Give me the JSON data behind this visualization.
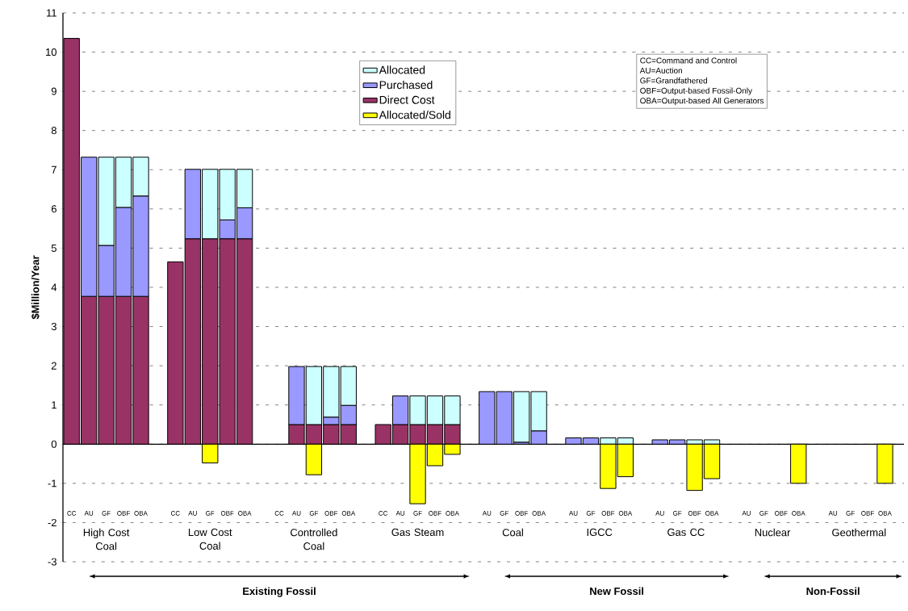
{
  "chart_data": {
    "type": "bar",
    "ylabel": "$Million/Year",
    "categories": [
      "CC",
      "AU",
      "GF",
      "OBF",
      "OBA",
      null,
      "CC",
      "AU",
      "GF",
      "OBF",
      "OBA",
      null,
      "CC",
      "AU",
      "GF",
      "OBF",
      "OBA",
      null,
      "CC",
      "AU",
      "GF",
      "OBF",
      "OBA",
      null,
      "AU",
      "GF",
      "OBF",
      "OBA",
      null,
      "AU",
      "GF",
      "OBF",
      "OBA",
      null,
      "AU",
      "GF",
      "OBF",
      "OBA",
      null,
      "AU",
      "GF",
      "OBF",
      "OBA",
      null,
      "AU",
      "GF",
      "OBF",
      "OBA"
    ],
    "series": [
      {
        "name": "Direct Cost",
        "color": "#993366",
        "values": [
          10.35,
          3.77,
          3.77,
          3.77,
          3.77,
          null,
          4.65,
          5.24,
          5.24,
          5.24,
          5.24,
          null,
          null,
          0.5,
          0.5,
          0.5,
          0.5,
          null,
          0.5,
          0.5,
          0.5,
          0.5,
          0.5,
          null,
          null,
          null,
          null,
          null,
          null,
          null,
          null,
          null,
          null,
          null,
          null,
          null,
          null,
          null,
          null,
          null,
          null,
          null,
          null,
          null,
          null,
          null,
          null,
          null
        ]
      },
      {
        "name": "Purchased",
        "color": "#9999ff",
        "values": [
          null,
          3.55,
          1.3,
          2.27,
          2.56,
          null,
          null,
          1.77,
          null,
          0.48,
          0.79,
          null,
          null,
          1.48,
          null,
          0.19,
          0.49,
          null,
          null,
          0.73,
          null,
          null,
          null,
          null,
          1.34,
          1.34,
          0.05,
          0.34,
          null,
          0.16,
          0.16,
          null,
          null,
          null,
          0.11,
          0.11,
          null,
          null,
          null,
          null,
          null,
          null,
          null,
          null,
          null,
          null,
          null,
          null
        ]
      },
      {
        "name": "Allocated",
        "color": "#ccffff",
        "values": [
          null,
          null,
          2.25,
          1.28,
          0.99,
          null,
          null,
          null,
          1.77,
          1.29,
          0.98,
          null,
          null,
          null,
          1.48,
          1.29,
          0.99,
          null,
          null,
          null,
          0.73,
          0.73,
          0.73,
          null,
          null,
          null,
          1.29,
          1.0,
          null,
          null,
          null,
          0.16,
          0.16,
          null,
          null,
          null,
          0.11,
          0.11,
          null,
          null,
          null,
          null,
          null,
          null,
          null,
          null,
          null,
          null
        ]
      },
      {
        "name": "Allocated/Sold",
        "color": "#ffff00",
        "values": [
          null,
          null,
          null,
          null,
          null,
          null,
          null,
          null,
          -0.48,
          null,
          null,
          null,
          null,
          null,
          -0.78,
          null,
          null,
          null,
          null,
          null,
          -1.52,
          -0.55,
          -0.26,
          null,
          null,
          null,
          null,
          null,
          null,
          null,
          null,
          -1.13,
          -0.83,
          null,
          null,
          null,
          -1.18,
          -0.88,
          null,
          null,
          null,
          null,
          -1.0,
          null,
          null,
          null,
          null,
          -1.0
        ]
      }
    ],
    "stacked": true,
    "ylim": [
      -3,
      11
    ],
    "yticks": [
      -3,
      -2,
      -1,
      0,
      1,
      2,
      3,
      4,
      5,
      6,
      7,
      8,
      9,
      10,
      11
    ],
    "grid": "y",
    "legend": "top",
    "annotations": [
      "High Cost Coal",
      "Low Cost Coal",
      "Controlled Coal",
      "Gas Steam",
      "Coal",
      "IGCC",
      "Gas CC",
      "Nuclear",
      "Geothermal",
      "Existing Fossil",
      "New Fossil",
      "Non-Fossil",
      "CC=Command and Control",
      "AU=Auction",
      "GF=Grandfathered",
      "OBF=Output-based Fossil-Only",
      "OBA=Output-based All Generators"
    ]
  }
}
